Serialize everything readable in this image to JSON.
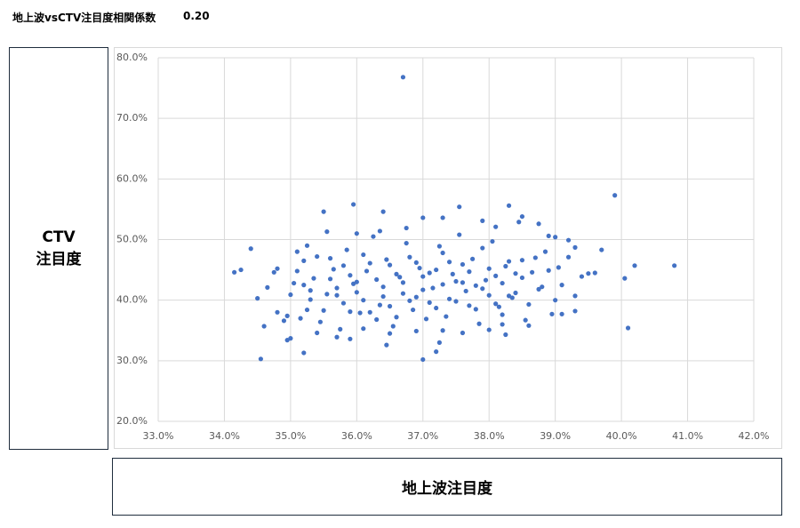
{
  "header": {
    "title": "地上波vsCTV注目度相関係数",
    "correlation": "0.20"
  },
  "chart_data": {
    "type": "scatter",
    "color": "#4472c4",
    "grid": true,
    "x_label": "地上波注目度",
    "y_label": [
      "CTV",
      "注目度"
    ],
    "xlim": [
      33,
      42
    ],
    "ylim": [
      20,
      80
    ],
    "xticks": [
      {
        "value": 33,
        "label": "33.0%"
      },
      {
        "value": 34,
        "label": "34.0%"
      },
      {
        "value": 35,
        "label": "35.0%"
      },
      {
        "value": 36,
        "label": "36.0%"
      },
      {
        "value": 37,
        "label": "37.0%"
      },
      {
        "value": 38,
        "label": "38.0%"
      },
      {
        "value": 39,
        "label": "39.0%"
      },
      {
        "value": 40,
        "label": "40.0%"
      },
      {
        "value": 41,
        "label": "41.0%"
      },
      {
        "value": 42,
        "label": "42.0%"
      }
    ],
    "yticks": [
      {
        "value": 20,
        "label": "20.0%"
      },
      {
        "value": 30,
        "label": "30.0%"
      },
      {
        "value": 40,
        "label": "40.0%"
      },
      {
        "value": 50,
        "label": "50.0%"
      },
      {
        "value": 60,
        "label": "60.0%"
      },
      {
        "value": 70,
        "label": "70.0%"
      },
      {
        "value": 80,
        "label": "80.0%"
      }
    ],
    "x": [
      36.7,
      39.9,
      40.8,
      40.1,
      40.2,
      40.05,
      34.55,
      37.0,
      35.2,
      34.15,
      34.25,
      34.4,
      35.95,
      38.3,
      37.55,
      36.4,
      35.5,
      39.7,
      39.6,
      39.3,
      35.9,
      36.45,
      37.2,
      37.25,
      38.25,
      34.5,
      34.6,
      34.65,
      34.8,
      35.0,
      34.95,
      35.1,
      35.2,
      35.3,
      35.4,
      35.5,
      35.6,
      35.7,
      35.8,
      35.9,
      36.0,
      36.1,
      36.2,
      36.3,
      36.4,
      36.5,
      36.6,
      36.7,
      36.8,
      36.9,
      37.0,
      37.1,
      37.2,
      37.3,
      37.4,
      37.5,
      37.6,
      37.7,
      37.8,
      37.9,
      38.0,
      38.1,
      38.2,
      38.3,
      38.4,
      38.5,
      38.6,
      38.7,
      38.8,
      38.9,
      39.0,
      35.15,
      35.25,
      35.35,
      35.45,
      35.55,
      35.65,
      35.75,
      35.85,
      35.95,
      36.05,
      36.15,
      36.25,
      36.35,
      36.45,
      36.55,
      36.65,
      36.75,
      36.85,
      36.95,
      37.05,
      37.15,
      37.25,
      37.35,
      37.45,
      37.55,
      37.65,
      37.75,
      37.85,
      37.95,
      38.05,
      38.15,
      38.25,
      38.35,
      38.45,
      38.55,
      38.65,
      38.75,
      38.85,
      38.95,
      39.05,
      35.6,
      35.7,
      35.8,
      35.9,
      36.0,
      36.1,
      36.2,
      36.3,
      36.4,
      36.5,
      36.6,
      36.7,
      36.8,
      36.9,
      37.0,
      37.1,
      37.2,
      37.3,
      37.4,
      37.5,
      37.6,
      37.7,
      37.8,
      37.9,
      38.0,
      38.1,
      38.2,
      38.3,
      38.4,
      38.5,
      36.35,
      36.75,
      37.3,
      37.9,
      38.1,
      38.5,
      38.75,
      36.0,
      35.55,
      37.0,
      36.5,
      36.9,
      37.6,
      38.0,
      38.6,
      35.4,
      35.7,
      36.1,
      37.3,
      38.2,
      39.1,
      39.2,
      39.3,
      39.4,
      39.5,
      39.1,
      39.2,
      38.9,
      39.0,
      39.3,
      34.8,
      34.9,
      35.0,
      35.05,
      34.95,
      35.1,
      35.2,
      34.75,
      35.3,
      35.25
    ],
    "values": [
      76.8,
      57.3,
      45.7,
      35.4,
      45.7,
      43.6,
      30.3,
      30.2,
      31.3,
      44.6,
      45.0,
      48.5,
      55.8,
      55.6,
      55.4,
      54.6,
      54.6,
      48.3,
      44.5,
      38.2,
      33.6,
      32.6,
      31.5,
      33.0,
      34.3,
      40.3,
      35.7,
      42.1,
      45.2,
      33.7,
      33.4,
      44.8,
      42.5,
      40.1,
      47.2,
      38.3,
      46.9,
      42.0,
      39.5,
      44.1,
      41.3,
      47.5,
      38.0,
      43.4,
      40.6,
      45.8,
      37.2,
      42.9,
      39.9,
      46.2,
      41.7,
      44.5,
      38.7,
      47.8,
      40.2,
      43.1,
      45.9,
      39.1,
      42.4,
      48.6,
      40.8,
      44.0,
      37.6,
      46.4,
      41.2,
      43.7,
      39.3,
      47.0,
      42.2,
      44.9,
      40.0,
      37.0,
      49.0,
      43.6,
      36.4,
      41.0,
      45.1,
      35.2,
      48.3,
      42.7,
      37.9,
      44.8,
      50.5,
      39.2,
      46.7,
      35.7,
      43.8,
      49.4,
      38.4,
      45.3,
      36.9,
      42.0,
      48.9,
      37.3,
      44.3,
      50.8,
      41.5,
      46.8,
      36.1,
      43.3,
      49.7,
      38.9,
      45.6,
      40.4,
      52.9,
      36.7,
      44.6,
      41.8,
      48.0,
      37.7,
      45.4,
      43.5,
      40.8,
      45.7,
      38.1,
      43.0,
      40.0,
      46.1,
      36.8,
      42.2,
      39.0,
      44.3,
      41.1,
      47.1,
      40.5,
      43.9,
      39.6,
      45.0,
      42.6,
      46.3,
      39.8,
      42.9,
      44.7,
      38.5,
      41.9,
      45.2,
      39.4,
      42.8,
      40.7,
      44.4,
      46.6,
      51.4,
      51.9,
      53.6,
      53.1,
      52.1,
      53.8,
      52.6,
      51.0,
      51.3,
      53.6,
      34.5,
      34.9,
      34.6,
      35.1,
      35.8,
      34.6,
      33.9,
      35.3,
      35.0,
      36.0,
      42.5,
      47.1,
      40.7,
      43.9,
      44.4,
      37.7,
      49.9,
      50.6,
      50.4,
      48.7,
      38.0,
      36.6,
      40.9,
      42.8,
      37.4,
      48.0,
      46.5,
      44.6,
      41.6,
      38.4
    ]
  }
}
